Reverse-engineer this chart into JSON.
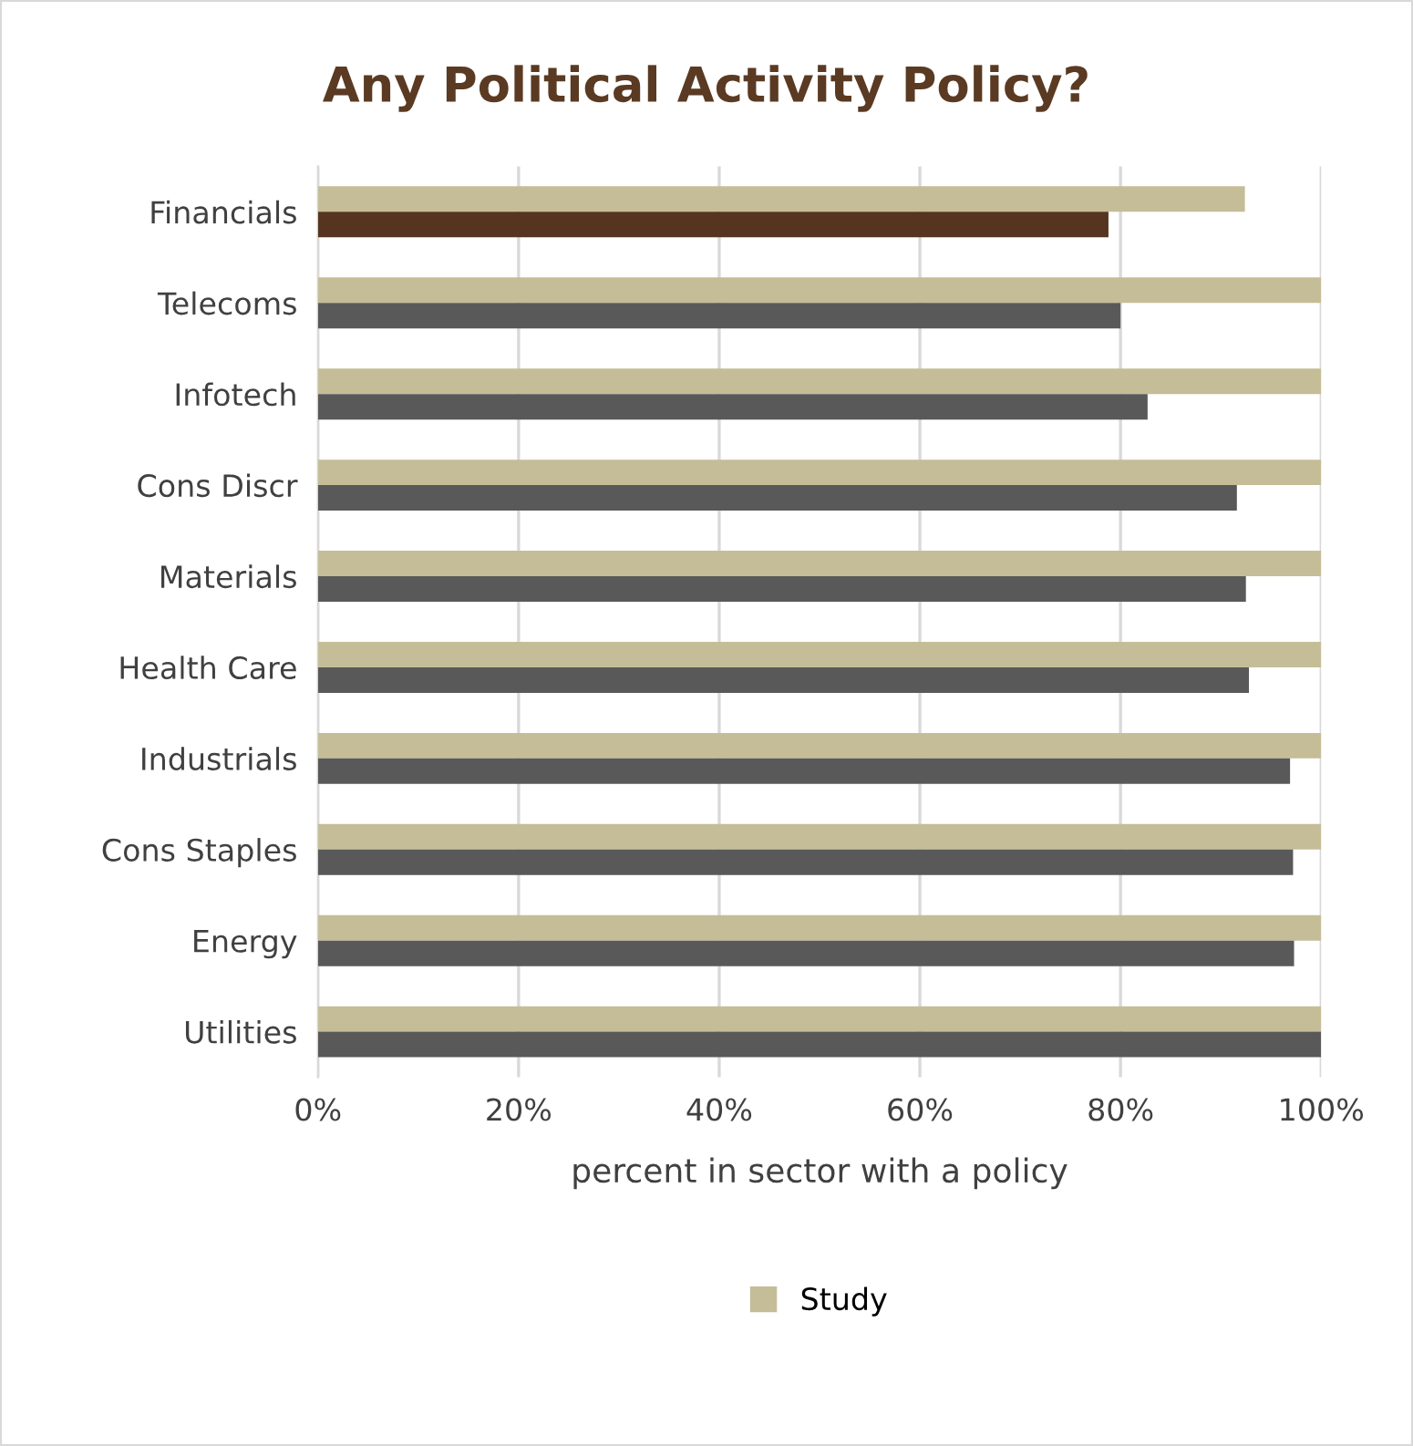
{
  "chart_data": {
    "type": "bar",
    "orientation": "horizontal",
    "title": "Any Political Activity Policy?",
    "xlabel": "percent in sector with a policy",
    "categories": [
      "Financials",
      "Telecoms",
      "Infotech",
      "Cons Discr",
      "Materials",
      "Health Care",
      "Industrials",
      "Cons Staples",
      "Energy",
      "Utilities"
    ],
    "series": [
      {
        "name": "Study",
        "color": "#c5bd97",
        "values": [
          92.4,
          100,
          100,
          100,
          100,
          100,
          100,
          100,
          100,
          100
        ]
      },
      {
        "colors": [
          "#56341f",
          "#595959",
          "#595959",
          "#595959",
          "#595959",
          "#595959",
          "#595959",
          "#595959",
          "#595959",
          "#595959"
        ],
        "values": [
          78.8,
          80,
          82.7,
          91.6,
          92.5,
          92.8,
          96.9,
          97.2,
          97.3,
          100
        ]
      }
    ],
    "xlim": [
      0,
      100
    ],
    "xticks": [
      {
        "value": 0,
        "label": "0%"
      },
      {
        "value": 20,
        "label": "20%"
      },
      {
        "value": 40,
        "label": "40%"
      },
      {
        "value": 60,
        "label": "60%"
      },
      {
        "value": 80,
        "label": "80%"
      },
      {
        "value": 100,
        "label": "100%"
      }
    ],
    "grid": "x",
    "legend": "bottom"
  }
}
